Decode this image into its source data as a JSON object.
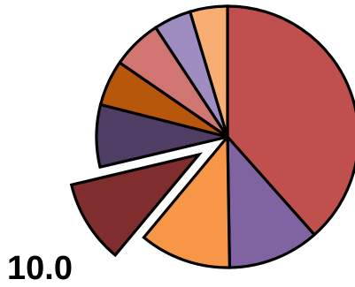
{
  "chart_data": {
    "type": "pie",
    "title": "",
    "start_angle_deg": 0,
    "direction": "clockwise",
    "legend": "none",
    "values": [
      37.5,
      11.0,
      11.0,
      10.0,
      7.5,
      5.5,
      6.0,
      4.5,
      4.5
    ],
    "colors": [
      "#c0504d",
      "#8064a2",
      "#f79646",
      "#7f2d2d",
      "#4f3d63",
      "#b7570c",
      "#d07572",
      "#9f8cc1",
      "#f8ad72"
    ],
    "exploded_index": 3,
    "data_labels": [
      {
        "slice_index": 3,
        "text": "10.0"
      }
    ]
  }
}
